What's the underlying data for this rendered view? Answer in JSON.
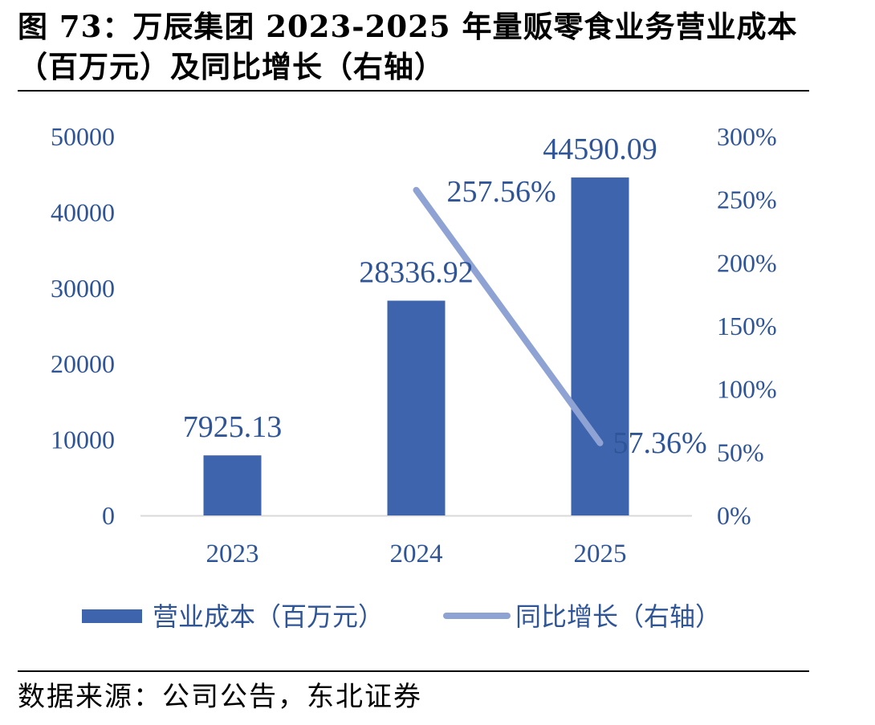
{
  "figure": {
    "title": "图 73：万辰集团 2023-2025 年量贩零食业务营业成本（百万元）及同比增长（右轴）",
    "source": "数据来源：公司公告，东北证券"
  },
  "colors": {
    "bar": "#3d64ad",
    "line": "#8fa2d4",
    "text": "#2f5597",
    "axis": "#d9d9d9"
  },
  "chart_data": {
    "type": "bar",
    "categories": [
      "2023",
      "2024",
      "2025"
    ],
    "series": [
      {
        "name": "营业成本（百万元）",
        "type": "bar",
        "axis": "left",
        "values": [
          7925.13,
          28336.92,
          44590.09
        ],
        "labels": [
          "7925.13",
          "28336.92",
          "44590.09"
        ]
      },
      {
        "name": "同比增长（右轴）",
        "type": "line",
        "axis": "right",
        "values": [
          null,
          257.56,
          57.36
        ],
        "labels": [
          "",
          "257.56%",
          "57.36%"
        ]
      }
    ],
    "left_axis": {
      "ylim": [
        0,
        50000
      ],
      "ticks": [
        "0",
        "10000",
        "20000",
        "30000",
        "40000",
        "50000"
      ]
    },
    "right_axis": {
      "ylim": [
        0,
        300
      ],
      "ticks": [
        "0%",
        "50%",
        "100%",
        "150%",
        "200%",
        "250%",
        "300%"
      ]
    },
    "grid": false,
    "legend_position": "bottom"
  }
}
